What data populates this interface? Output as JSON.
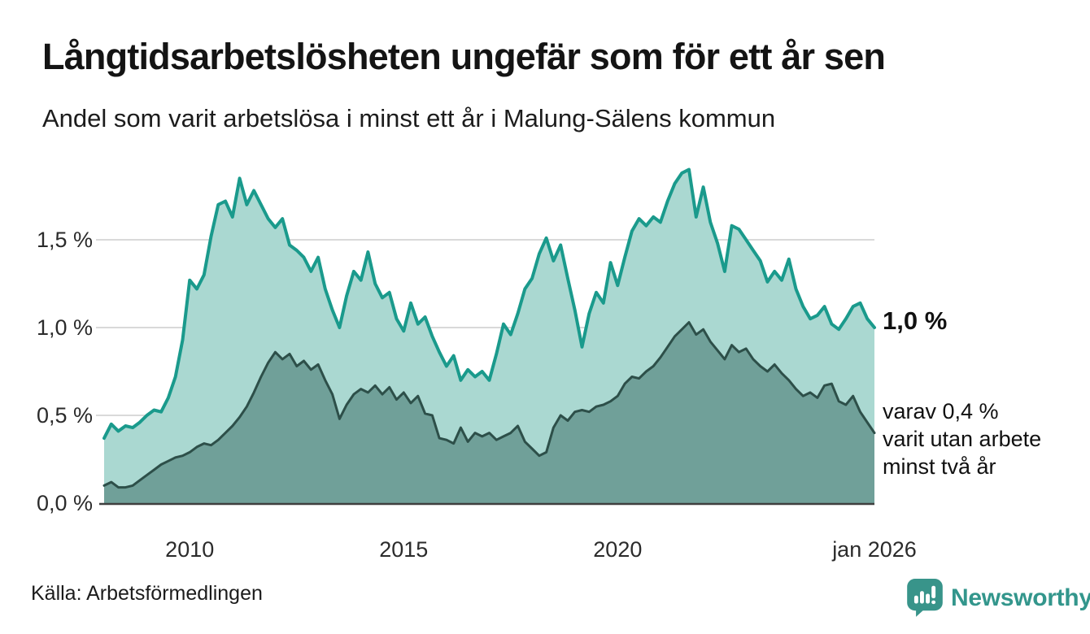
{
  "header": {
    "title": "Långtidsarbetslösheten ungefär som för ett år sen",
    "subtitle": "Andel som varit arbetslösa i minst ett år i Malung-Sälens kommun"
  },
  "annotations": {
    "latest_total": "1,0 %",
    "secondary_line1": "varav 0,4 %",
    "secondary_line2": "varit utan arbete",
    "secondary_line3": "minst två år"
  },
  "footer": {
    "source": "Källa: Arbetsförmedlingen",
    "brand": "Newsworthy"
  },
  "colors": {
    "series1_line": "#1a9a8c",
    "series1_fill": "#aad8d1",
    "series2_line": "#2d4f49",
    "series2_fill": "#70a099",
    "gridline": "#d9d9d9",
    "baseline": "#3f3f3f",
    "brand_teal": "#33968c"
  },
  "chart_data": {
    "type": "area",
    "title": "Långtidsarbetslösheten ungefär som för ett år sen",
    "subtitle": "Andel som varit arbetslösa i minst ett år i Malung-Sälens kommun",
    "unit": "%",
    "x_start_year": 2008,
    "x_step_months": 2,
    "xlim": [
      2008,
      2026
    ],
    "ylim": [
      0,
      1.95
    ],
    "grid": "horizontal",
    "legend_position": "none",
    "y_ticks": [
      {
        "value": 0.0,
        "label": "0,0 %"
      },
      {
        "value": 0.5,
        "label": "0,5 %"
      },
      {
        "value": 1.0,
        "label": "1,0 %"
      },
      {
        "value": 1.5,
        "label": "1,5 %"
      }
    ],
    "x_ticks": [
      {
        "value": 2010,
        "label": "2010"
      },
      {
        "value": 2015,
        "label": "2015"
      },
      {
        "value": 2020,
        "label": "2020"
      },
      {
        "value": 2026,
        "label": "jan 2026"
      }
    ],
    "last_values": {
      "minst_ett_ar": 1.0,
      "minst_tva_ar": 0.4
    },
    "series": [
      {
        "name": "Andel arbetslösa minst ett år",
        "values": [
          0.37,
          0.45,
          0.41,
          0.44,
          0.43,
          0.46,
          0.5,
          0.53,
          0.52,
          0.6,
          0.72,
          0.93,
          1.27,
          1.22,
          1.3,
          1.52,
          1.7,
          1.72,
          1.63,
          1.85,
          1.7,
          1.78,
          1.7,
          1.62,
          1.57,
          1.62,
          1.47,
          1.44,
          1.4,
          1.32,
          1.4,
          1.22,
          1.1,
          1.0,
          1.18,
          1.32,
          1.27,
          1.43,
          1.25,
          1.17,
          1.2,
          1.05,
          0.98,
          1.14,
          1.02,
          1.06,
          0.95,
          0.86,
          0.78,
          0.84,
          0.7,
          0.76,
          0.72,
          0.75,
          0.7,
          0.85,
          1.02,
          0.96,
          1.08,
          1.22,
          1.28,
          1.42,
          1.51,
          1.38,
          1.47,
          1.28,
          1.1,
          0.89,
          1.08,
          1.2,
          1.14,
          1.37,
          1.24,
          1.4,
          1.55,
          1.62,
          1.58,
          1.63,
          1.6,
          1.72,
          1.82,
          1.88,
          1.9,
          1.63,
          1.8,
          1.6,
          1.48,
          1.32,
          1.58,
          1.56,
          1.5,
          1.44,
          1.38,
          1.26,
          1.32,
          1.27,
          1.39,
          1.22,
          1.12,
          1.05,
          1.07,
          1.12,
          1.02,
          0.99,
          1.05,
          1.12,
          1.14,
          1.05,
          1.0
        ]
      },
      {
        "name": "varav arbetslösa minst två år",
        "values": [
          0.1,
          0.12,
          0.09,
          0.09,
          0.1,
          0.13,
          0.16,
          0.19,
          0.22,
          0.24,
          0.26,
          0.27,
          0.29,
          0.32,
          0.34,
          0.33,
          0.36,
          0.4,
          0.44,
          0.49,
          0.55,
          0.63,
          0.72,
          0.8,
          0.86,
          0.82,
          0.85,
          0.78,
          0.81,
          0.76,
          0.79,
          0.7,
          0.62,
          0.48,
          0.56,
          0.62,
          0.65,
          0.63,
          0.67,
          0.62,
          0.66,
          0.59,
          0.63,
          0.57,
          0.61,
          0.51,
          0.5,
          0.37,
          0.36,
          0.34,
          0.43,
          0.35,
          0.4,
          0.38,
          0.4,
          0.36,
          0.38,
          0.4,
          0.44,
          0.35,
          0.31,
          0.27,
          0.29,
          0.43,
          0.5,
          0.47,
          0.52,
          0.53,
          0.52,
          0.55,
          0.56,
          0.58,
          0.61,
          0.68,
          0.72,
          0.71,
          0.75,
          0.78,
          0.83,
          0.89,
          0.95,
          0.99,
          1.03,
          0.96,
          0.99,
          0.92,
          0.87,
          0.82,
          0.9,
          0.86,
          0.88,
          0.82,
          0.78,
          0.75,
          0.79,
          0.74,
          0.7,
          0.65,
          0.61,
          0.63,
          0.6,
          0.67,
          0.68,
          0.58,
          0.56,
          0.61,
          0.52,
          0.46,
          0.4
        ]
      }
    ]
  }
}
